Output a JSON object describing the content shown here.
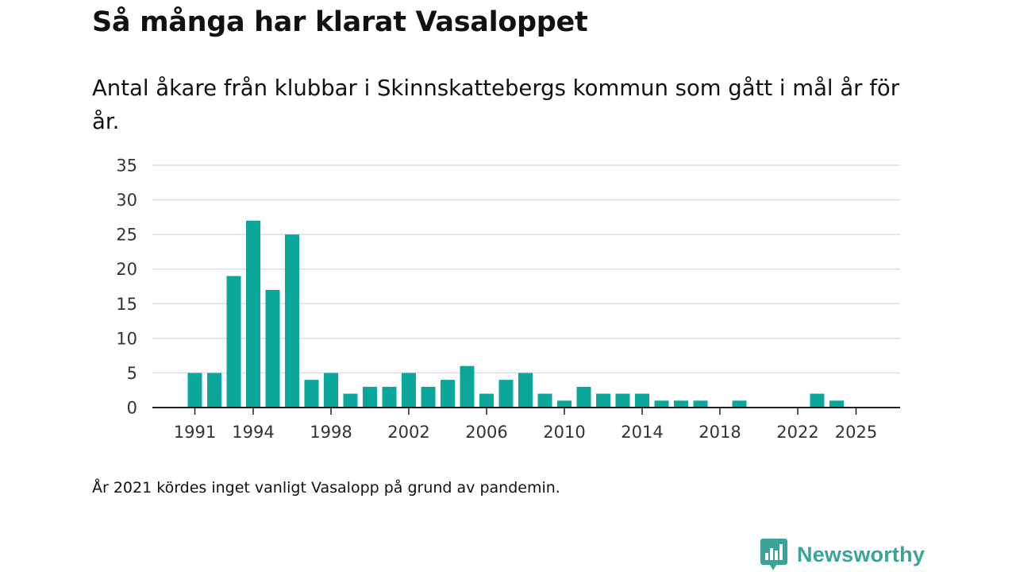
{
  "title": "Så många har klarat Vasaloppet",
  "subtitle": "Antal åkare från klubbar i Skinnskattebergs kommun som gått i mål år för år.",
  "note": "År 2021 kördes inget vanligt Vasalopp på grund av pandemin.",
  "brand": {
    "name": "Newsworthy",
    "icon": "newsworthy-logo-icon",
    "color": "#3aa39a"
  },
  "colors": {
    "bar": "#0ba79a",
    "grid": "#dedede",
    "axis": "#222222"
  },
  "chart_data": {
    "type": "bar",
    "title": "Så många har klarat Vasaloppet",
    "xlabel": "",
    "ylabel": "",
    "x": [
      1991,
      1992,
      1993,
      1994,
      1995,
      1996,
      1997,
      1998,
      1999,
      2000,
      2001,
      2002,
      2003,
      2004,
      2005,
      2006,
      2007,
      2008,
      2009,
      2010,
      2011,
      2012,
      2013,
      2014,
      2015,
      2016,
      2017,
      2018,
      2019,
      2020,
      2021,
      2022,
      2023,
      2024,
      2025
    ],
    "values": [
      5,
      5,
      19,
      27,
      17,
      25,
      4,
      5,
      2,
      3,
      3,
      5,
      3,
      4,
      6,
      2,
      4,
      5,
      2,
      1,
      3,
      2,
      2,
      2,
      1,
      1,
      1,
      0,
      1,
      0,
      0,
      0,
      2,
      1,
      0
    ],
    "ylim": [
      0,
      35
    ],
    "y_ticks": [
      0,
      5,
      10,
      15,
      20,
      25,
      30,
      35
    ],
    "x_tick_labels": [
      "1991",
      "1994",
      "1998",
      "2002",
      "2006",
      "2010",
      "2014",
      "2018",
      "2022",
      "2025"
    ],
    "grid": true
  }
}
